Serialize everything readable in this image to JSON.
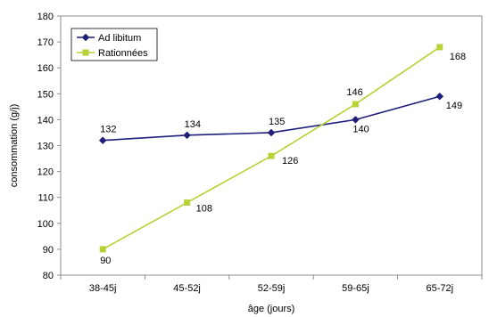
{
  "chart_data": {
    "type": "line",
    "categories": [
      "38-45j",
      "45-52j",
      "52-59j",
      "59-65j",
      "65-72j"
    ],
    "series": [
      {
        "name": "Ad libitum",
        "values": [
          132,
          134,
          135,
          140,
          149
        ],
        "color": "#1f1f7a",
        "marker": "diamond"
      },
      {
        "name": "Rationnées",
        "values": [
          90,
          108,
          126,
          146,
          168
        ],
        "color": "#b5d334",
        "marker": "square"
      }
    ],
    "xlabel": "âge (jours)",
    "ylabel": "consommation (g/j)",
    "ylim": [
      80,
      180
    ],
    "yticks": [
      80,
      90,
      100,
      110,
      120,
      130,
      140,
      150,
      160,
      170,
      180
    ],
    "grid": false,
    "legend_position": "top-left"
  }
}
